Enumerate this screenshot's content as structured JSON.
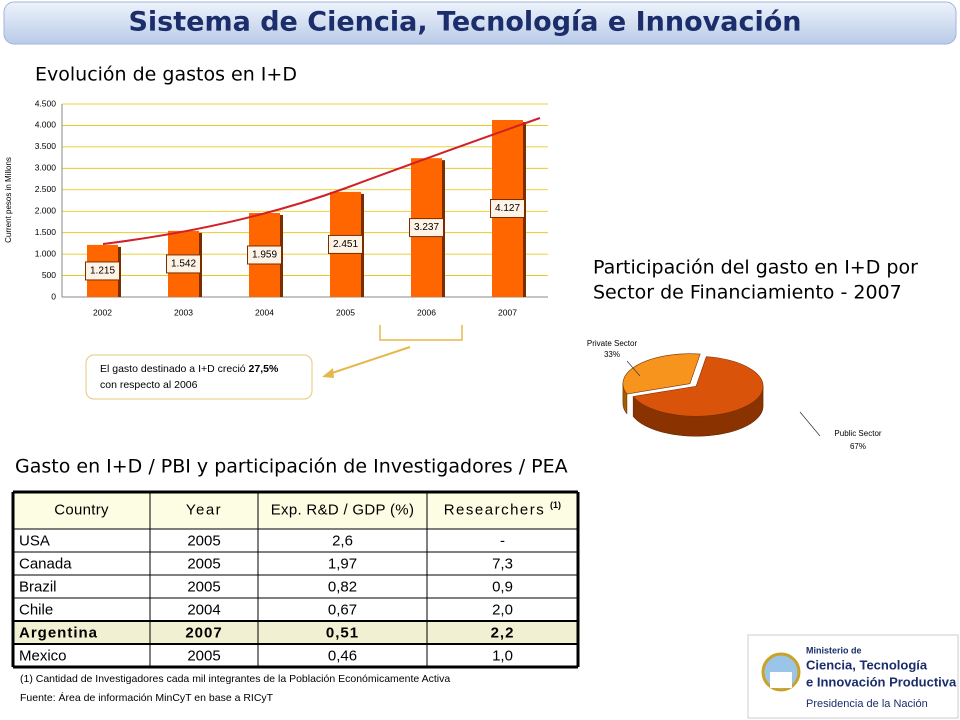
{
  "header": {
    "title": "Sistema de Ciencia, Tecnología e Innovación"
  },
  "chart_data": [
    {
      "type": "bar",
      "title": "Evolución de gastos en I+D",
      "y_label": "Current pesos in Millons",
      "categories": [
        "2002",
        "2003",
        "2004",
        "2005",
        "2006",
        "2007"
      ],
      "values": [
        1215,
        1542,
        1959,
        2451,
        3237,
        4127
      ],
      "value_labels": [
        "1.215",
        "1.542",
        "1.959",
        "2.451",
        "3.237",
        "4.127"
      ],
      "color": "#ff6600",
      "ylim": [
        0,
        4500
      ],
      "yticks": [
        0,
        500,
        {
          "value": 1000,
          "label": "1.000"
        },
        {
          "value": 1500,
          "label": "1.500"
        },
        {
          "value": 2000,
          "label": "2.000"
        },
        {
          "value": 2500,
          "label": "2.500"
        },
        {
          "value": 3000,
          "label": "3.000"
        },
        {
          "value": 3500,
          "label": "3.500"
        },
        {
          "value": 4000,
          "label": "4.000"
        },
        {
          "value": 4500,
          "label": "4.500"
        }
      ],
      "grid": true,
      "annotation": [
        "El gasto destinado a I+D creció ",
        "27,5%",
        "con respecto al 2006"
      ]
    },
    {
      "type": "pie",
      "title": [
        "Participación del gasto en I+D  por",
        "Sector de Financiamiento - 2007"
      ],
      "categories": [
        "Private Sector",
        "Public Sector"
      ],
      "values": [
        33,
        67
      ],
      "value_labels": [
        "33%",
        "67%"
      ],
      "colors": [
        "#f7941d",
        "#d9530a"
      ]
    }
  ],
  "table": {
    "title": "Gasto en I+D / PBI y participación de Investigadores / PEA",
    "columns": [
      "Country",
      "Year",
      "Exp. R&D / GDP (%)",
      "Researchers"
    ],
    "column_note": "(1)",
    "rows": [
      [
        "USA",
        "2005",
        "2,6",
        "-"
      ],
      [
        "Canada",
        "2005",
        "1,97",
        "7,3"
      ],
      [
        "Brazil",
        "2005",
        "0,82",
        "0,9"
      ],
      [
        "Chile",
        "2004",
        "0,67",
        "2,0"
      ],
      [
        "Argentina",
        "2007",
        "0,51",
        "2,2"
      ],
      [
        "Mexico",
        "2005",
        "0,46",
        "1,0"
      ]
    ],
    "highlight_row": 4
  },
  "footnotes": [
    "(1) Cantidad de Investigadores cada mil integrantes de la Población Económicamente Activa",
    "Fuente: Área de información MinCyT en base a RICyT"
  ],
  "logo": [
    "Ministerio de",
    "Ciencia, Tecnología",
    "e Innovación Productiva",
    "Presidencia de la Nación"
  ]
}
